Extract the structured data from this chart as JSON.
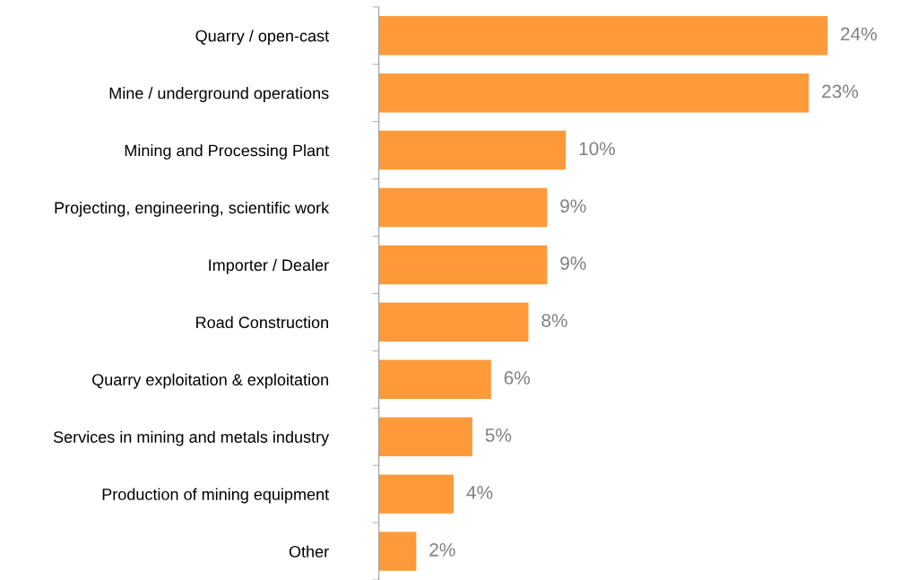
{
  "chart_data": {
    "type": "bar",
    "orientation": "horizontal",
    "categories": [
      "Quarry / open-cast",
      "Mine / underground operations",
      "Mining and Processing Plant",
      "Projecting, engineering, scientific work",
      "Importer / Dealer",
      "Road Construction",
      "Quarry exploitation & exploitation",
      "Services in mining and metals industry",
      "Production of mining equipment",
      "Other"
    ],
    "values": [
      24,
      23,
      10,
      9,
      9,
      8,
      6,
      5,
      4,
      2
    ],
    "value_labels": [
      "24%",
      "23%",
      "10%",
      "9%",
      "9%",
      "8%",
      "6%",
      "5%",
      "4%",
      "2%"
    ],
    "color": "#fe9a3a",
    "grid": false,
    "legend": false,
    "tick_labels": "y"
  }
}
